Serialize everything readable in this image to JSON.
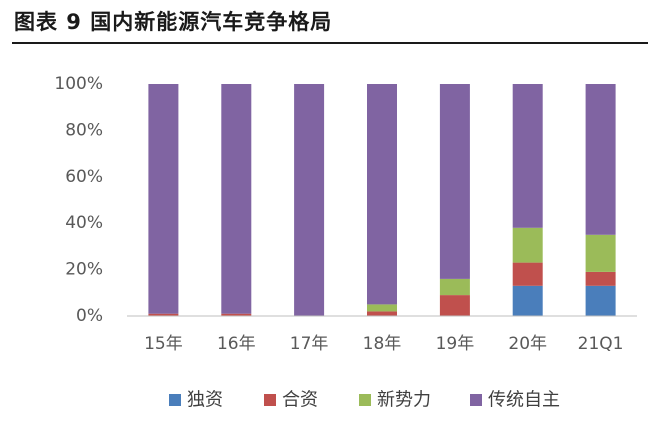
{
  "figure": {
    "title": "图表 9 国内新能源汽车竞争格局"
  },
  "chart_data": {
    "type": "bar",
    "stacked": true,
    "categories": [
      "15年",
      "16年",
      "17年",
      "18年",
      "19年",
      "20年",
      "21Q1"
    ],
    "ylim": [
      0,
      100
    ],
    "y_ticks": [
      0,
      20,
      40,
      60,
      80,
      100
    ],
    "y_tick_labels": [
      "0%",
      "20%",
      "40%",
      "60%",
      "80%",
      "100%"
    ],
    "grid": false,
    "legend_position": "bottom",
    "series": [
      {
        "name": "独资",
        "color": "#4a7ebb",
        "values": [
          0,
          0,
          0,
          0,
          0,
          13,
          13
        ]
      },
      {
        "name": "合资",
        "color": "#c0504d",
        "values": [
          1,
          1,
          0,
          2,
          9,
          10,
          6
        ]
      },
      {
        "name": "新势力",
        "color": "#9bbb59",
        "values": [
          0,
          0,
          0,
          3,
          7,
          15,
          16
        ]
      },
      {
        "name": "传统自主",
        "color": "#8064a2",
        "values": [
          99,
          99,
          100,
          95,
          84,
          62,
          65
        ]
      }
    ]
  }
}
